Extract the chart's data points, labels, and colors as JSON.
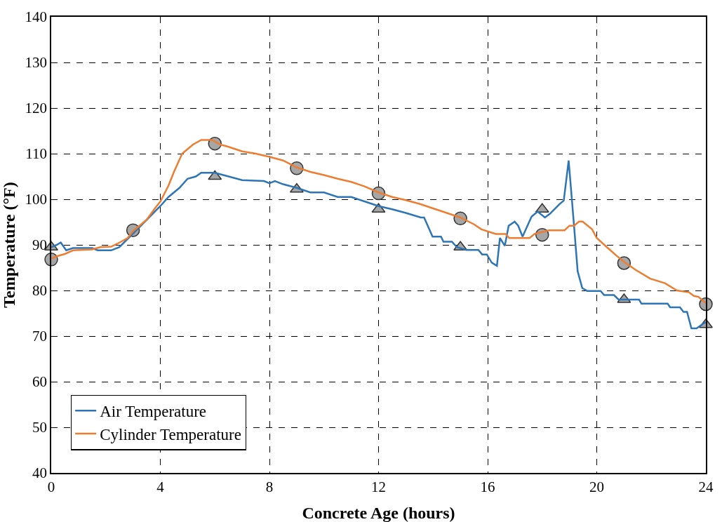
{
  "chart_data": {
    "type": "line",
    "xlabel": "Concrete Age (hours)",
    "ylabel": "Temperature (°F)",
    "xlim": [
      0,
      24
    ],
    "xticks": [
      0,
      4,
      8,
      12,
      16,
      20,
      24
    ],
    "ylim": [
      40,
      140
    ],
    "yticks": [
      40,
      50,
      60,
      70,
      80,
      90,
      100,
      110,
      120,
      130,
      140
    ],
    "grid": true,
    "legend": "bottom left",
    "series": [
      {
        "name": "Air Temperature",
        "color": "#2e75b6",
        "x": [
          0,
          0.2,
          0.35,
          0.55,
          0.8,
          1.5,
          1.7,
          2.2,
          2.5,
          3,
          3.5,
          4,
          4.3,
          4.7,
          5,
          5.3,
          5.5,
          6,
          6.5,
          7,
          7.8,
          8,
          8.2,
          8.5,
          9,
          9.5,
          10,
          10.5,
          11,
          11.5,
          12,
          12.5,
          13,
          13.55,
          13.67,
          13.98,
          14.29,
          14.38,
          14.69,
          14.87,
          15.22,
          15.66,
          15.8,
          15.97,
          16.15,
          16.34,
          16.45,
          16.63,
          16.77,
          16.99,
          17.12,
          17.28,
          17.61,
          17.83,
          18.1,
          18.28,
          18.63,
          18.79,
          18.97,
          19.16,
          19.3,
          19.47,
          19.65,
          20.14,
          20.27,
          20.63,
          20.8,
          21.55,
          21.64,
          22.6,
          22.69,
          23.05,
          23.18,
          23.31,
          23.47,
          23.66,
          23.92,
          24
        ],
        "values": [
          89.5,
          90,
          90.5,
          88.8,
          89.3,
          89.3,
          88.8,
          88.8,
          89.5,
          92.5,
          95.5,
          98.5,
          100.5,
          102.5,
          104.5,
          105,
          105.8,
          105.8,
          105,
          104.2,
          104,
          103.5,
          104,
          103.3,
          102.5,
          101.5,
          101.5,
          100.5,
          100.5,
          99.5,
          98.5,
          97.8,
          97,
          96,
          96,
          91.8,
          91.8,
          90.7,
          90.7,
          89.5,
          88.9,
          88.9,
          87.9,
          87.9,
          86.1,
          85.4,
          91.5,
          89.8,
          94.2,
          95.1,
          94.2,
          91.8,
          96.2,
          97.3,
          96,
          96.8,
          98.9,
          99.7,
          108.5,
          94.7,
          84.2,
          80.5,
          79.9,
          79.9,
          79,
          79,
          78,
          78,
          77.1,
          77.1,
          76.3,
          76.3,
          75.3,
          75.3,
          71.7,
          71.7,
          72.8,
          73
        ]
      },
      {
        "type": "scatter",
        "marker": "triangle",
        "color": "#a6a6a6",
        "x": [
          0,
          3,
          6,
          9,
          12,
          15,
          18,
          21,
          24
        ],
        "values": [
          89.5,
          null,
          105,
          102.2,
          97.8,
          89.5,
          97.8,
          78,
          72.5
        ]
      },
      {
        "name": "Cylinder Temperature",
        "color": "#ed7d31",
        "x": [
          0,
          0.2,
          0.5,
          0.8,
          1.5,
          1.8,
          2.2,
          2.5,
          2.8,
          3,
          3.5,
          3.8,
          4,
          4.3,
          4.5,
          4.8,
          5,
          5.2,
          5.5,
          5.9,
          6.2,
          6.5,
          7,
          7.5,
          8,
          8.5,
          9,
          9.5,
          10,
          10.5,
          11,
          11.5,
          12,
          12.5,
          13,
          13.5,
          14,
          14.5,
          15,
          15.5,
          15.77,
          16.3,
          16.66,
          16.79,
          17.54,
          17.72,
          18.25,
          18.82,
          19,
          19.17,
          19.35,
          19.48,
          19.83,
          20,
          20.37,
          20.73,
          21.02,
          21.43,
          21.96,
          22.5,
          22.94,
          23.38,
          23.56,
          23.73,
          24
        ],
        "values": [
          87,
          87.5,
          88,
          88.8,
          89,
          89.5,
          89.6,
          90.5,
          91.5,
          93,
          95.5,
          98,
          99.5,
          103,
          106,
          110,
          111,
          112,
          113,
          113,
          112,
          111.5,
          110.5,
          110,
          109.3,
          108.5,
          107,
          106,
          105.3,
          104.5,
          103.8,
          102.8,
          101.5,
          100.5,
          99.8,
          99,
          98,
          97,
          96,
          94.5,
          93.4,
          92.4,
          92.4,
          91.5,
          91.5,
          92.4,
          93.2,
          93.2,
          94.2,
          94.2,
          95.1,
          95.1,
          93.4,
          91.5,
          89.5,
          87.6,
          86.2,
          84.5,
          82.6,
          81.6,
          80,
          79.6,
          78.8,
          78.6,
          77.2
        ]
      },
      {
        "type": "scatter",
        "marker": "circle",
        "color": "#a6a6a6",
        "x": [
          0,
          3,
          6,
          9,
          12,
          15,
          18,
          21,
          24
        ],
        "values": [
          86.8,
          93.2,
          112.2,
          106.8,
          101.3,
          95.8,
          92.2,
          86,
          77
        ]
      }
    ]
  }
}
